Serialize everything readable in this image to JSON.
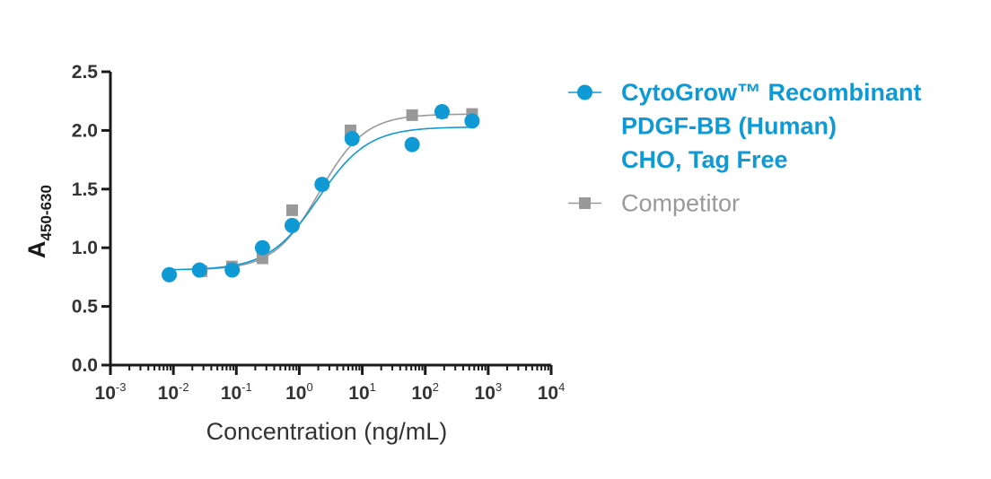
{
  "chart_data": {
    "type": "scatter",
    "xscale": "log",
    "xlim": [
      0.001,
      10000
    ],
    "ylim": [
      0,
      2.5
    ],
    "xlabel": "Concentration (ng/mL)",
    "ylabel": {
      "main": "A",
      "sub": "450-630"
    },
    "yticks": [
      "0.0",
      "0.5",
      "1.0",
      "1.5",
      "2.0",
      "2.5"
    ],
    "xticks": [
      {
        "base": "10",
        "exp": "-3"
      },
      {
        "base": "10",
        "exp": "-2"
      },
      {
        "base": "10",
        "exp": "-1"
      },
      {
        "base": "10",
        "exp": "0"
      },
      {
        "base": "10",
        "exp": "1"
      },
      {
        "base": "10",
        "exp": "2"
      },
      {
        "base": "10",
        "exp": "3"
      },
      {
        "base": "10",
        "exp": "4"
      }
    ],
    "grid": false,
    "legend_position": "right",
    "series": [
      {
        "name": "CytoGrow™ Recombinant PDGF-BB (Human) CHO, Tag Free",
        "legend_lines": [
          "CytoGrow™ Recombinant",
          "PDGF-BB (Human)",
          "CHO, Tag Free"
        ],
        "marker": "circle",
        "color": "#0f9ad6",
        "x": [
          0.0086,
          0.026,
          0.086,
          0.26,
          0.77,
          2.3,
          6.9,
          62,
          185,
          555
        ],
        "y": [
          0.77,
          0.81,
          0.81,
          1.0,
          1.19,
          1.54,
          1.93,
          1.88,
          2.16,
          2.08
        ],
        "fit": {
          "bottom": 0.81,
          "top": 2.03,
          "logEC50": 0.3,
          "hill": 1.1
        }
      },
      {
        "name": "Competitor",
        "legend_lines": [
          "Competitor"
        ],
        "marker": "square",
        "color": "#999999",
        "x": [
          0.028,
          0.085,
          0.26,
          0.77,
          6.5,
          62,
          185,
          555
        ],
        "y": [
          0.8,
          0.84,
          0.91,
          1.32,
          2.0,
          2.13,
          2.15,
          2.14
        ],
        "fit": {
          "bottom": 0.81,
          "top": 2.14,
          "logEC50": 0.32,
          "hill": 1.2
        }
      }
    ]
  }
}
